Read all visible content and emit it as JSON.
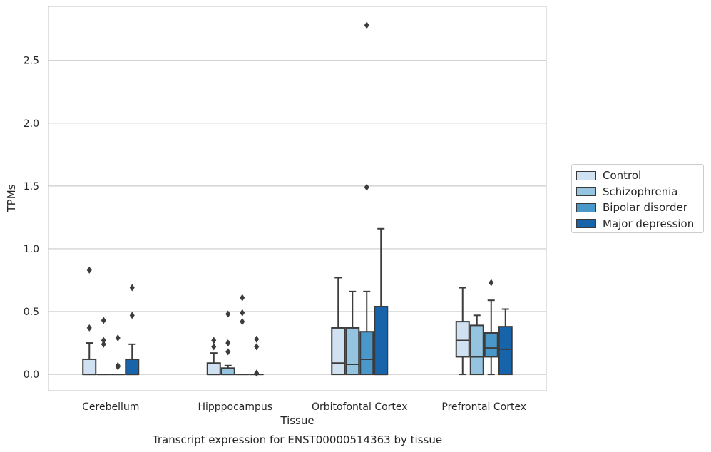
{
  "chart_data": {
    "type": "box",
    "title": "Transcript expression for ENST00000514363 by tissue",
    "xlabel": "Tissue",
    "ylabel": "TPMs",
    "ylim": [
      -0.13,
      2.93
    ],
    "yticks": [
      0.0,
      0.5,
      1.0,
      1.5,
      2.0,
      2.5
    ],
    "ytick_labels": [
      "0.0",
      "0.5",
      "1.0",
      "1.5",
      "2.0",
      "2.5"
    ],
    "grid": "horizontal",
    "legend_placement": "right",
    "categories": [
      "Cerebellum",
      "Hipppocampus",
      "Orbitofontal Cortex",
      "Prefrontal Cortex"
    ],
    "series": [
      {
        "name": "Control",
        "color": "#d0e1f2",
        "boxes": [
          {
            "q1": 0.0,
            "median": 0.0,
            "q3": 0.12,
            "whisker_low": 0.0,
            "whisker_high": 0.25,
            "outliers": [
              0.37,
              0.83
            ]
          },
          {
            "q1": 0.0,
            "median": 0.0,
            "q3": 0.09,
            "whisker_low": 0.0,
            "whisker_high": 0.17,
            "outliers": [
              0.22,
              0.27
            ]
          },
          {
            "q1": 0.0,
            "median": 0.09,
            "q3": 0.37,
            "whisker_low": 0.0,
            "whisker_high": 0.77,
            "outliers": []
          },
          {
            "q1": 0.14,
            "median": 0.27,
            "q3": 0.42,
            "whisker_low": 0.0,
            "whisker_high": 0.69,
            "outliers": []
          }
        ]
      },
      {
        "name": "Schizophrenia",
        "color": "#94c4df",
        "boxes": [
          {
            "q1": 0.0,
            "median": 0.0,
            "q3": 0.0,
            "whisker_low": 0.0,
            "whisker_high": 0.0,
            "outliers": [
              0.24,
              0.27,
              0.43
            ]
          },
          {
            "q1": 0.0,
            "median": 0.0,
            "q3": 0.05,
            "whisker_low": 0.0,
            "whisker_high": 0.07,
            "outliers": [
              0.18,
              0.25,
              0.48
            ]
          },
          {
            "q1": 0.0,
            "median": 0.08,
            "q3": 0.37,
            "whisker_low": 0.0,
            "whisker_high": 0.66,
            "outliers": []
          },
          {
            "q1": 0.0,
            "median": 0.14,
            "q3": 0.39,
            "whisker_low": 0.0,
            "whisker_high": 0.47,
            "outliers": []
          }
        ]
      },
      {
        "name": "Bipolar disorder",
        "color": "#4a98c9",
        "boxes": [
          {
            "q1": 0.0,
            "median": 0.0,
            "q3": 0.0,
            "whisker_low": 0.0,
            "whisker_high": 0.0,
            "outliers": [
              0.06,
              0.07,
              0.29
            ]
          },
          {
            "q1": 0.0,
            "median": 0.0,
            "q3": 0.0,
            "whisker_low": 0.0,
            "whisker_high": 0.0,
            "outliers": [
              0.42,
              0.49,
              0.61
            ]
          },
          {
            "q1": 0.0,
            "median": 0.12,
            "q3": 0.34,
            "whisker_low": 0.0,
            "whisker_high": 0.66,
            "outliers": [
              1.49,
              2.78
            ]
          },
          {
            "q1": 0.14,
            "median": 0.21,
            "q3": 0.33,
            "whisker_low": 0.0,
            "whisker_high": 0.59,
            "outliers": [
              0.73
            ]
          }
        ]
      },
      {
        "name": "Major depression",
        "color": "#1764ab",
        "boxes": [
          {
            "q1": 0.0,
            "median": 0.0,
            "q3": 0.12,
            "whisker_low": 0.0,
            "whisker_high": 0.24,
            "outliers": [
              0.47,
              0.69
            ]
          },
          {
            "q1": 0.0,
            "median": 0.0,
            "q3": 0.0,
            "whisker_low": 0.0,
            "whisker_high": 0.0,
            "outliers": [
              0.01,
              0.22,
              0.28
            ]
          },
          {
            "q1": 0.0,
            "median": 0.0,
            "q3": 0.54,
            "whisker_low": 0.0,
            "whisker_high": 1.16,
            "outliers": []
          },
          {
            "q1": 0.0,
            "median": 0.2,
            "q3": 0.38,
            "whisker_low": 0.0,
            "whisker_high": 0.52,
            "outliers": []
          }
        ]
      }
    ]
  }
}
